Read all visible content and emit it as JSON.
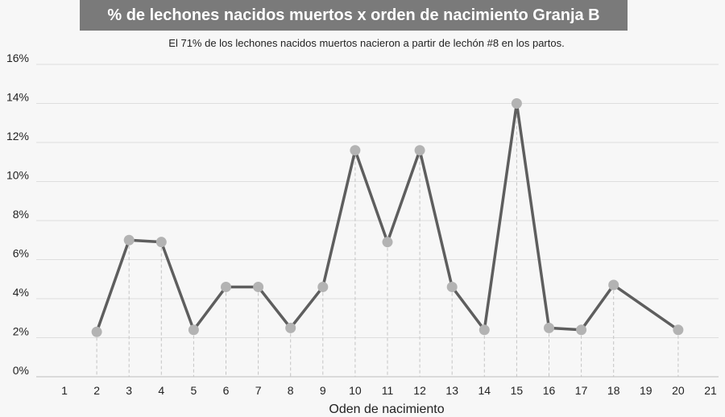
{
  "chart_data": {
    "type": "line",
    "title": "% de lechones nacidos muertos x orden de nacimiento Granja B",
    "subtitle": "El 71% de los lechones nacidos muertos nacieron a partir de lechón #8 en los partos.",
    "xlabel": "Oden de nacimiento",
    "ylabel": "",
    "x_ticks": [
      "1",
      "2",
      "3",
      "4",
      "5",
      "6",
      "7",
      "8",
      "9",
      "10",
      "11",
      "12",
      "13",
      "14",
      "15",
      "16",
      "17",
      "18",
      "19",
      "20",
      "21"
    ],
    "y_ticks": [
      "0%",
      "2%",
      "4%",
      "6%",
      "8%",
      "10%",
      "12%",
      "14%",
      "16%"
    ],
    "ylim": [
      0,
      16
    ],
    "grid": true,
    "series": [
      {
        "x": [
          2,
          3,
          4,
          5,
          6,
          7,
          8,
          9,
          10,
          11,
          12,
          13,
          14,
          15,
          16,
          17,
          18,
          20
        ],
        "values": [
          2.3,
          7.0,
          6.9,
          2.4,
          4.6,
          4.6,
          2.5,
          4.6,
          11.6,
          6.9,
          11.6,
          4.6,
          2.4,
          14.0,
          2.5,
          2.4,
          4.7,
          2.4
        ]
      }
    ],
    "colors": {
      "line": "#5e5e5e",
      "marker": "#b3b3b3",
      "grid": "#dedede",
      "title_bg": "#7a7a7a"
    }
  }
}
